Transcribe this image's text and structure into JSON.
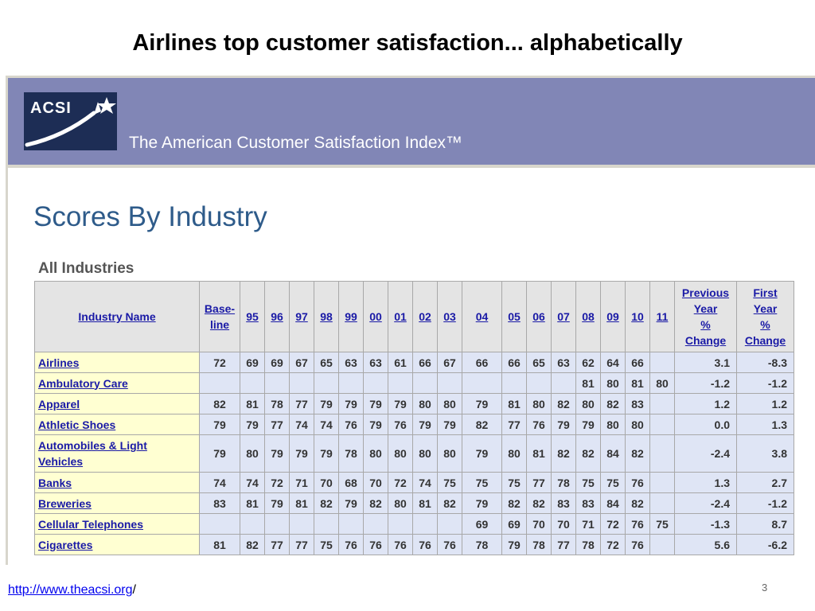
{
  "slide": {
    "title": "Airlines top customer satisfaction... alphabetically",
    "footer_link": "http://www.theacsi.org",
    "footer_suffix": "/",
    "page_number": "3"
  },
  "banner": {
    "logo_text": "ACSI",
    "tagline": "The American Customer Satisfaction Index™"
  },
  "page": {
    "heading": "Scores By Industry",
    "subheading": "All Industries"
  },
  "table": {
    "headers": {
      "industry": "Industry Name",
      "baseline_1": "Base-",
      "baseline_2": "line",
      "years": [
        "95",
        "96",
        "97",
        "98",
        "99",
        "00",
        "01",
        "02",
        "03",
        "04",
        "05",
        "06",
        "07",
        "08",
        "09",
        "10",
        "11"
      ],
      "prev_1": "Previous",
      "prev_2": "Year",
      "prev_3": "%",
      "prev_4": "Change",
      "first_1": "First",
      "first_2": "Year",
      "first_3": "%",
      "first_4": "Change"
    },
    "rows": [
      {
        "name": "Airlines",
        "baseline": "72",
        "years": [
          "69",
          "69",
          "67",
          "65",
          "63",
          "63",
          "61",
          "66",
          "67",
          "66",
          "66",
          "65",
          "63",
          "62",
          "64",
          "66",
          ""
        ],
        "prev": "3.1",
        "first": "-8.3"
      },
      {
        "name": "Ambulatory Care",
        "baseline": "",
        "years": [
          "",
          "",
          "",
          "",
          "",
          "",
          "",
          "",
          "",
          "",
          "",
          "",
          "",
          "81",
          "80",
          "81",
          "80"
        ],
        "prev": "-1.2",
        "first": "-1.2"
      },
      {
        "name": "Apparel",
        "baseline": "82",
        "years": [
          "81",
          "78",
          "77",
          "79",
          "79",
          "79",
          "79",
          "80",
          "80",
          "79",
          "81",
          "80",
          "82",
          "80",
          "82",
          "83",
          ""
        ],
        "prev": "1.2",
        "first": "1.2"
      },
      {
        "name": "Athletic Shoes",
        "baseline": "79",
        "years": [
          "79",
          "77",
          "74",
          "74",
          "76",
          "79",
          "76",
          "79",
          "79",
          "82",
          "77",
          "76",
          "79",
          "79",
          "80",
          "80",
          ""
        ],
        "prev": "0.0",
        "first": "1.3"
      },
      {
        "name_1": "Automobiles & Light",
        "name_2": "Vehicles",
        "baseline": "79",
        "years": [
          "80",
          "79",
          "79",
          "79",
          "78",
          "80",
          "80",
          "80",
          "80",
          "79",
          "80",
          "81",
          "82",
          "82",
          "84",
          "82",
          ""
        ],
        "prev": "-2.4",
        "first": "3.8"
      },
      {
        "name": "Banks",
        "baseline": "74",
        "years": [
          "74",
          "72",
          "71",
          "70",
          "68",
          "70",
          "72",
          "74",
          "75",
          "75",
          "75",
          "77",
          "78",
          "75",
          "75",
          "76",
          ""
        ],
        "prev": "1.3",
        "first": "2.7"
      },
      {
        "name": "Breweries",
        "baseline": "83",
        "years": [
          "81",
          "79",
          "81",
          "82",
          "79",
          "82",
          "80",
          "81",
          "82",
          "79",
          "82",
          "82",
          "83",
          "83",
          "84",
          "82",
          ""
        ],
        "prev": "-2.4",
        "first": "-1.2"
      },
      {
        "name": "Cellular Telephones",
        "baseline": "",
        "years": [
          "",
          "",
          "",
          "",
          "",
          "",
          "",
          "",
          "",
          "69",
          "69",
          "70",
          "70",
          "71",
          "72",
          "76",
          "75"
        ],
        "prev": "-1.3",
        "first": "8.7"
      },
      {
        "name": "Cigarettes",
        "baseline": "81",
        "years": [
          "82",
          "77",
          "77",
          "75",
          "76",
          "76",
          "76",
          "76",
          "76",
          "78",
          "79",
          "78",
          "77",
          "78",
          "72",
          "76",
          ""
        ],
        "prev": "5.6",
        "first": "-6.2"
      }
    ]
  }
}
